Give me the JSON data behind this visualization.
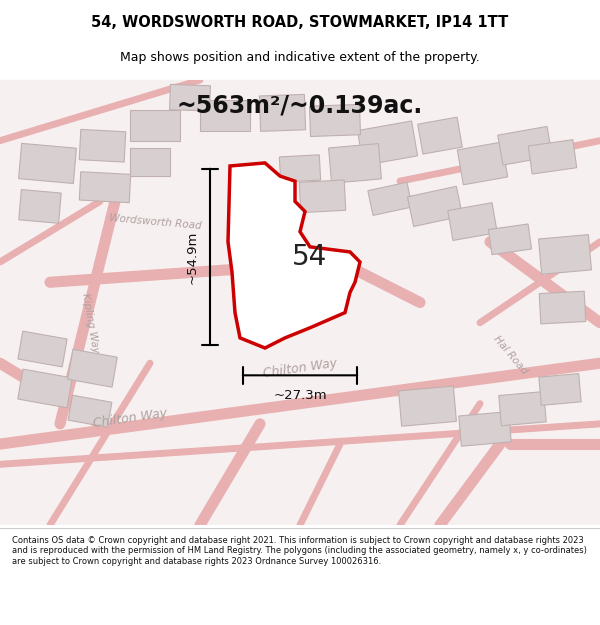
{
  "title_line1": "54, WORDSWORTH ROAD, STOWMARKET, IP14 1TT",
  "title_line2": "Map shows position and indicative extent of the property.",
  "area_text": "~563m²/~0.139ac.",
  "number_label": "54",
  "dim_vertical": "~54.9m",
  "dim_horizontal": "~27.3m",
  "footer_text": "Contains OS data © Crown copyright and database right 2021. This information is subject to Crown copyright and database rights 2023 and is reproduced with the permission of HM Land Registry. The polygons (including the associated geometry, namely x, y co-ordinates) are subject to Crown copyright and database rights 2023 Ordnance Survey 100026316.",
  "bg_color": "#f5f0f0",
  "map_bg": "#f8f5f5",
  "road_color": "#e8b0b0",
  "building_color": "#d8d0d0",
  "building_edge": "#c0b0b0",
  "plot_fill": "#ffffff",
  "plot_edge": "#cc0000",
  "road_label_color": "#aaaaaa",
  "dim_color": "#000000",
  "title_color": "#000000",
  "footer_color": "#111111"
}
